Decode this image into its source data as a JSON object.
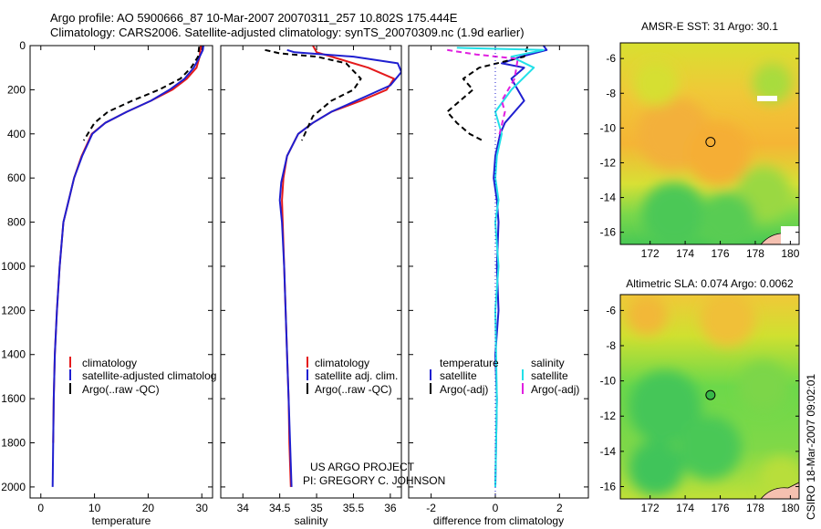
{
  "header": {
    "line1": "Argo profile: AO 5900666_87 10-Mar-2007 20070311_257 10.802S 175.444E",
    "line2": "Climatology: CARS2006. Satellite-adjusted climatology: synTS_20070309.nc (1.9d earlier)"
  },
  "colors": {
    "red": "#e41a1c",
    "blue": "#1f1fd0",
    "black": "#000000",
    "cyan": "#22e0e8",
    "magenta": "#e020e0"
  },
  "chart_data": [
    {
      "type": "line",
      "name": "temperature profile",
      "xlabel": "temperature",
      "xlim": [
        -2,
        32
      ],
      "ylim": [
        2050,
        0
      ],
      "xticks": [
        0,
        10,
        20,
        30
      ],
      "yticks": [
        0,
        200,
        400,
        600,
        800,
        1000,
        1200,
        1400,
        1600,
        1800,
        2000
      ],
      "legend": [
        {
          "label": "climatology",
          "color": "#e41a1c"
        },
        {
          "label": "satellite-adjusted climatolog",
          "color": "#1f1fd0"
        },
        {
          "label": "Argo(..raw -QC)",
          "color": "#000000"
        }
      ],
      "series": [
        {
          "name": "climatology",
          "color": "#e41a1c",
          "dash": "",
          "x": [
            29.8,
            29.6,
            29.0,
            27.2,
            24.5,
            20.5,
            16.0,
            12.0,
            9.5,
            7.6,
            6.2,
            5.2,
            4.2,
            3.5,
            3.0,
            2.6,
            2.4,
            2.3
          ],
          "y": [
            0,
            50,
            100,
            150,
            200,
            250,
            300,
            350,
            400,
            500,
            600,
            700,
            800,
            1000,
            1200,
            1400,
            1600,
            1800
          ]
        },
        {
          "name": "satellite-adjusted climatology",
          "color": "#1f1fd0",
          "dash": "",
          "x": [
            30.3,
            30.2,
            29.6,
            28.5,
            26.8,
            24.0,
            20.5,
            16.0,
            12.0,
            9.6,
            7.7,
            6.2,
            5.2,
            4.2,
            3.5,
            3.0,
            2.6,
            2.4,
            2.3,
            2.2
          ],
          "y": [
            0,
            20,
            50,
            100,
            150,
            200,
            250,
            300,
            350,
            400,
            500,
            600,
            700,
            800,
            1000,
            1200,
            1400,
            1600,
            1800,
            2000
          ]
        },
        {
          "name": "Argo (raw -QC)",
          "color": "#000000",
          "dash": "6,4",
          "x": [
            29.5,
            29.3,
            28.0,
            26.0,
            22.0,
            17.0,
            12.5,
            10.0,
            8.0
          ],
          "y": [
            5,
            50,
            100,
            150,
            200,
            250,
            300,
            350,
            430
          ]
        }
      ]
    },
    {
      "type": "line",
      "name": "salinity profile",
      "xlabel": "salinity",
      "xlim": [
        33.7,
        36.15
      ],
      "ylim": [
        2050,
        0
      ],
      "xticks": [
        34,
        34.5,
        35,
        35.5,
        36
      ],
      "xticklabels": [
        "34",
        "34.5",
        "35",
        "35.5",
        "36"
      ],
      "legend": [
        {
          "label": "climatology",
          "color": "#e41a1c"
        },
        {
          "label": "satellite adj. clim.",
          "color": "#1f1fd0"
        },
        {
          "label": "Argo(..raw -QC)",
          "color": "#000000"
        }
      ],
      "series": [
        {
          "name": "climatology",
          "color": "#e41a1c",
          "dash": "",
          "x": [
            34.95,
            35.0,
            35.3,
            35.7,
            36.05,
            35.95,
            35.6,
            35.2,
            34.95,
            34.75,
            34.6,
            34.55,
            34.53,
            34.54,
            34.56,
            34.58,
            34.6,
            34.62,
            34.63,
            34.65
          ],
          "y": [
            0,
            30,
            60,
            100,
            150,
            200,
            250,
            300,
            350,
            400,
            500,
            600,
            700,
            800,
            1000,
            1200,
            1400,
            1600,
            1800,
            2000
          ]
        },
        {
          "name": "satellite adj. clim.",
          "color": "#1f1fd0",
          "dash": "",
          "x": [
            34.6,
            34.7,
            35.5,
            36.1,
            36.15,
            36.0,
            35.6,
            35.2,
            34.95,
            34.75,
            34.6,
            34.52,
            34.5,
            34.53,
            34.56,
            34.58,
            34.6,
            34.62,
            34.64,
            34.66
          ],
          "y": [
            20,
            30,
            50,
            80,
            120,
            180,
            240,
            300,
            350,
            400,
            500,
            620,
            700,
            800,
            1000,
            1200,
            1400,
            1600,
            1800,
            2000
          ]
        },
        {
          "name": "Argo (raw -QC)",
          "color": "#000000",
          "dash": "6,4",
          "x": [
            34.3,
            34.5,
            35.0,
            35.4,
            35.6,
            35.5,
            35.2,
            34.95,
            34.8
          ],
          "y": [
            20,
            35,
            50,
            80,
            150,
            200,
            250,
            320,
            430
          ]
        }
      ],
      "annotations": [
        "US ARGO PROJECT",
        "PI: GREGORY C. JOHNSON"
      ]
    },
    {
      "type": "line",
      "name": "difference from climatology",
      "xlabel": "difference from climatology",
      "xlim": [
        -2.7,
        2.9
      ],
      "ylim": [
        2050,
        0
      ],
      "xticks": [
        -2,
        0,
        2
      ],
      "legend_headers": [
        "temperature",
        "salinity"
      ],
      "legend": [
        {
          "label": "satellite",
          "color": "#1f1fd0",
          "group": "temperature"
        },
        {
          "label": "Argo(-adj)",
          "color": "#000000",
          "group": "temperature"
        },
        {
          "label": "satellite",
          "color": "#22e0e8",
          "group": "salinity"
        },
        {
          "label": "Argo(-adj)",
          "color": "#e020e0",
          "group": "salinity"
        }
      ],
      "series": [
        {
          "name": "temperature satellite",
          "color": "#1f1fd0",
          "dash": "",
          "x": [
            1.5,
            1.6,
            0.8,
            0.2,
            0.9,
            0.5,
            0.9,
            0.3,
            0.15,
            0.0,
            -0.05,
            0.05,
            0.1,
            0.05,
            0.1,
            0.0,
            0.05,
            0.0
          ],
          "y": [
            0,
            20,
            50,
            80,
            100,
            150,
            250,
            350,
            400,
            500,
            600,
            700,
            800,
            1000,
            1200,
            1400,
            1600,
            2000
          ]
        },
        {
          "name": "temperature Argo(-adj)",
          "color": "#000000",
          "dash": "6,4",
          "x": [
            1.0,
            0.9,
            -0.5,
            -1.0,
            -0.7,
            -1.5,
            -1.2,
            -0.8,
            -0.4
          ],
          "y": [
            5,
            50,
            100,
            150,
            200,
            300,
            350,
            400,
            430
          ]
        },
        {
          "name": "salinity satellite",
          "color": "#22e0e8",
          "dash": "",
          "x": [
            -1.2,
            1.5,
            0.5,
            1.2,
            0.5,
            0.0,
            0.2,
            0.05,
            0.0,
            0.1,
            0.0,
            0.1,
            0.0,
            0.05,
            0.0
          ],
          "y": [
            10,
            20,
            50,
            100,
            200,
            300,
            400,
            500,
            600,
            700,
            800,
            1000,
            1200,
            1600,
            2000
          ]
        },
        {
          "name": "salinity Argo(-adj)",
          "color": "#e020e0",
          "dash": "6,4",
          "x": [
            -1.5,
            -0.6,
            0.7,
            0.6,
            0.2,
            0.3,
            0.1
          ],
          "y": [
            20,
            40,
            60,
            150,
            250,
            300,
            420
          ]
        }
      ]
    },
    {
      "type": "heatmap",
      "name": "AMSR-E SST map",
      "title": "AMSR-E SST: 31 Argo: 30.1",
      "xlim": [
        170.3,
        180.5
      ],
      "ylim": [
        -16.7,
        -5.1
      ],
      "xticks": [
        172,
        174,
        176,
        178,
        180
      ],
      "yticks": [
        -6,
        -8,
        -10,
        -12,
        -14,
        -16
      ],
      "marker": {
        "lon": 175.444,
        "lat": -10.802
      }
    },
    {
      "type": "heatmap",
      "name": "Altimetric SLA map",
      "title": "Altimetric SLA: 0.074 Argo: 0.0062",
      "xlim": [
        170.3,
        180.5
      ],
      "ylim": [
        -16.7,
        -5.1
      ],
      "xticks": [
        172,
        174,
        176,
        178,
        180
      ],
      "yticks": [
        -6,
        -8,
        -10,
        -12,
        -14,
        -16
      ],
      "marker": {
        "lon": 175.444,
        "lat": -10.802
      }
    }
  ],
  "credit": "CSIRO 18-Mar-2007 09:02:01"
}
